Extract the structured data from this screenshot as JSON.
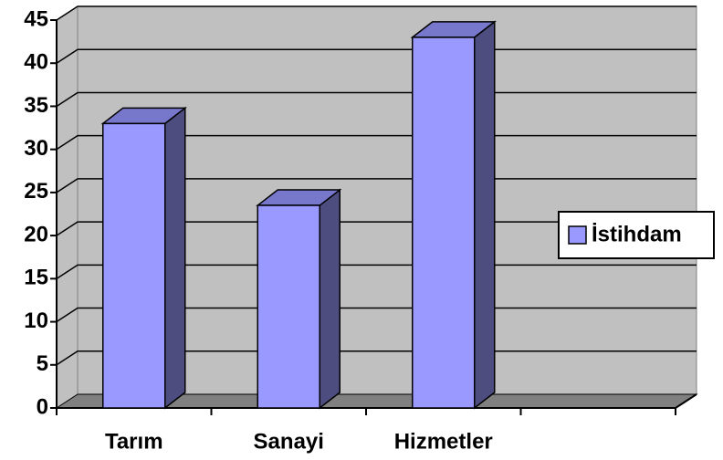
{
  "chart_data": {
    "type": "bar3d",
    "categories": [
      "Tarım",
      "Sanayi",
      "Hizmetler",
      null
    ],
    "series": [
      {
        "name": "İstihdam",
        "color": "#9999ff",
        "values": [
          33,
          23.5,
          43,
          null
        ]
      }
    ],
    "ylim": [
      0,
      45
    ],
    "yticks": [
      0,
      5,
      10,
      15,
      20,
      25,
      30,
      35,
      40,
      45
    ],
    "grid": true,
    "legend": "right"
  }
}
